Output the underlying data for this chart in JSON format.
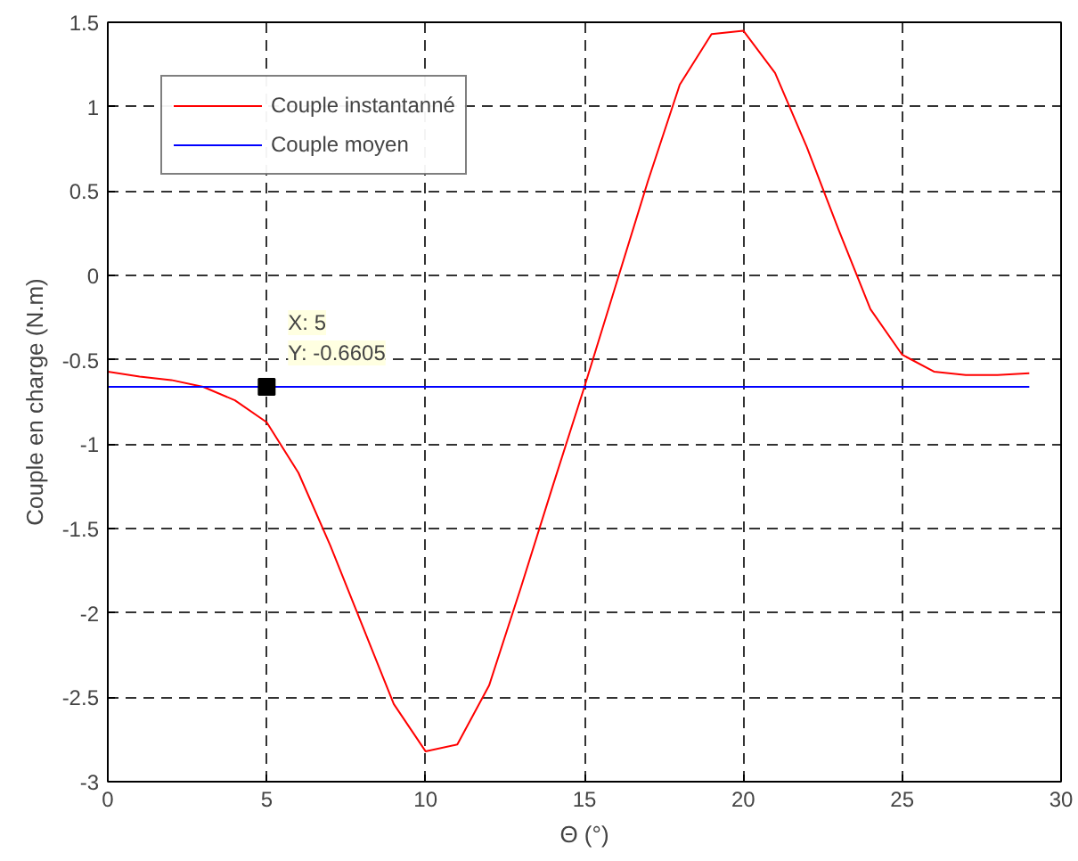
{
  "chart_data": {
    "type": "line",
    "xlabel": "Θ (°)",
    "ylabel": "Couple en charge (N.m)",
    "x": [
      0,
      1,
      2,
      3,
      4,
      5,
      6,
      7,
      8,
      9,
      10,
      11,
      12,
      13,
      14,
      15,
      16,
      17,
      18,
      19,
      20,
      21,
      22,
      23,
      24,
      25,
      26,
      27,
      28,
      29
    ],
    "series": [
      {
        "name": "Couple instantanné",
        "color": "#ff0000",
        "values": [
          -0.57,
          -0.6,
          -0.62,
          -0.66,
          -0.74,
          -0.87,
          -1.17,
          -1.6,
          -2.07,
          -2.54,
          -2.82,
          -2.78,
          -2.43,
          -1.85,
          -1.25,
          -0.66,
          -0.05,
          0.56,
          1.13,
          1.43,
          1.45,
          1.2,
          0.76,
          0.27,
          -0.2,
          -0.47,
          -0.57,
          -0.59,
          -0.59,
          -0.58
        ]
      },
      {
        "name": "Couple moyen",
        "color": "#0000ff",
        "x": [
          0,
          29
        ],
        "values": [
          -0.6605,
          -0.6605
        ]
      }
    ],
    "annotations": [
      {
        "text": "X: 5\nY: -0.6605",
        "x": 5,
        "y": -0.6605
      }
    ],
    "xlim": [
      0,
      30
    ],
    "ylim": [
      -3,
      1.5
    ],
    "xticks": [
      0,
      5,
      10,
      15,
      20,
      25,
      30
    ],
    "yticks": [
      -3,
      -2.5,
      -2,
      -1.5,
      -1,
      -0.5,
      0,
      0.5,
      1,
      1.5
    ],
    "grid": true,
    "line_style": "solid",
    "legend": "top left"
  }
}
